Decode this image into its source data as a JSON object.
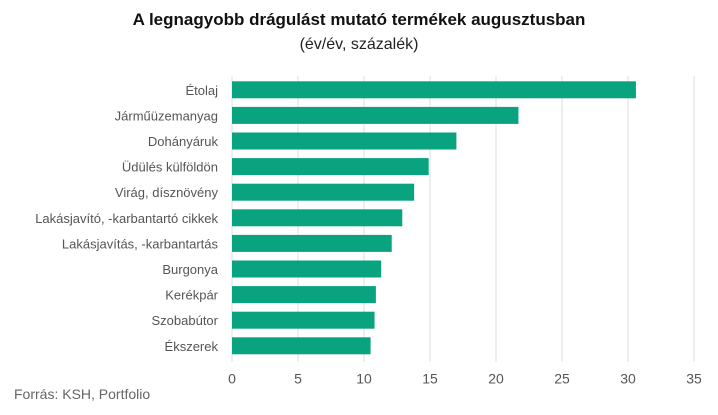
{
  "chart_data": {
    "type": "bar",
    "orientation": "horizontal",
    "title": "A legnagyobb drágulást mutató termékek augusztusban",
    "subtitle": "(év/év, százalék)",
    "categories": [
      "Étolaj",
      "Járműüzemanyag",
      "Dohányáruk",
      "Üdülés külföldön",
      "Virág, dísznövény",
      "Lakásjavító, -karbantartó cikkek",
      "Lakásjavítás, -karbantartás",
      "Burgonya",
      "Kerékpár",
      "Szobabútor",
      "Ékszerek"
    ],
    "values": [
      30.6,
      21.7,
      17.0,
      14.9,
      13.8,
      12.9,
      12.1,
      11.3,
      10.9,
      10.8,
      10.5
    ],
    "xlim": [
      0,
      35
    ],
    "xticks": [
      0,
      5,
      10,
      15,
      20,
      25,
      30,
      35
    ],
    "grid": true,
    "bar_color": "#0aa37f",
    "source": "Forrás: KSH, Portfolio"
  }
}
